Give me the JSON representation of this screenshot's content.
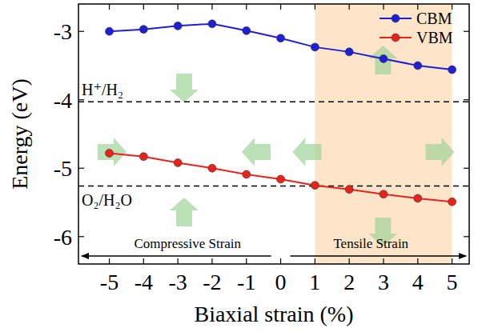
{
  "chart_data": {
    "type": "line",
    "x_label": "Biaxial strain (%)",
    "y_label": "Energy (eV)",
    "x": [
      -5,
      -4,
      -3,
      -2,
      -1,
      0,
      1,
      2,
      3,
      4,
      5
    ],
    "series": [
      {
        "name": "CBM",
        "color": "#1f1fd6",
        "marker": "circle",
        "line_style": "solid",
        "values": [
          -3.0,
          -2.97,
          -2.92,
          -2.89,
          -2.99,
          -3.1,
          -3.23,
          -3.3,
          -3.4,
          -3.5,
          -3.56
        ]
      },
      {
        "name": "VBM",
        "color": "#e8231c",
        "marker": "circle",
        "line_style": "solid",
        "values": [
          -4.78,
          -4.83,
          -4.92,
          -5.0,
          -5.09,
          -5.16,
          -5.25,
          -5.31,
          -5.38,
          -5.44,
          -5.49
        ]
      }
    ],
    "xlim": [
      -5.9,
      5.5
    ],
    "xticks": [
      -5,
      -4,
      -3,
      -2,
      -1,
      0,
      1,
      2,
      3,
      4,
      5
    ],
    "ylim": [
      -6.4,
      -2.6
    ],
    "yticks": [
      -6,
      -5,
      -4,
      -3
    ],
    "reference_lines": [
      {
        "value": -4.03,
        "label": "H⁺/H₂"
      },
      {
        "value": -5.26,
        "label": "O₂/H₂O"
      }
    ],
    "highlight_range": {
      "x": [
        1,
        5
      ]
    },
    "annotations": [
      "Compressive Strain",
      "Tensile Strain"
    ],
    "legend": "upper right",
    "grid": false
  }
}
